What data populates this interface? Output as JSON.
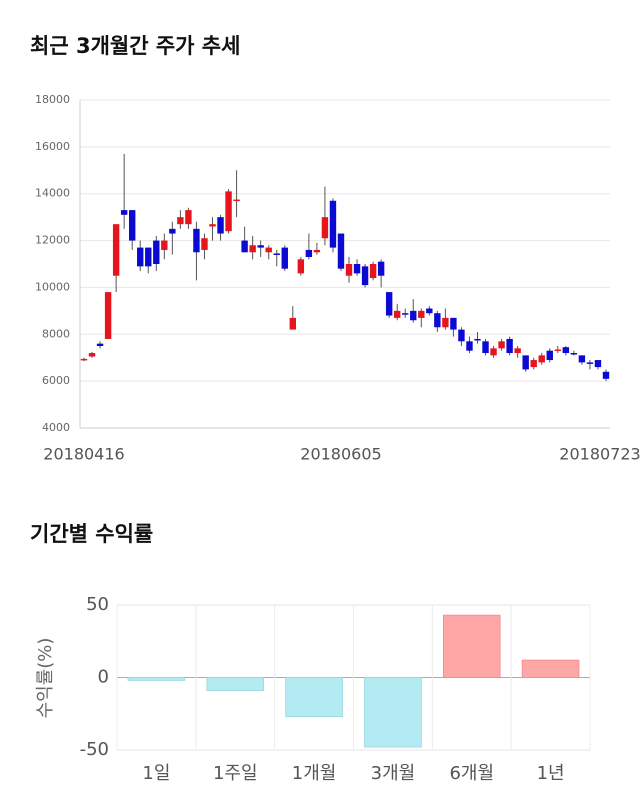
{
  "chart_data": [
    {
      "type": "candlestick",
      "title": "최근 3개월간 주가 추세",
      "categories": [
        "20180416",
        null,
        null,
        null,
        null,
        null,
        null,
        null,
        null,
        null,
        null,
        null,
        null,
        null,
        null,
        null,
        null,
        null,
        null,
        null,
        null,
        null,
        null,
        null,
        null,
        null,
        null,
        null,
        null,
        null,
        null,
        null,
        "20180605",
        null,
        null,
        null,
        null,
        null,
        null,
        null,
        null,
        null,
        null,
        null,
        null,
        null,
        null,
        null,
        null,
        null,
        null,
        null,
        null,
        null,
        null,
        null,
        null,
        null,
        null,
        null,
        null,
        null,
        null,
        null,
        null,
        "20180723"
      ],
      "open": [
        6900,
        7050,
        7600,
        7800,
        10500,
        13300,
        13300,
        11700,
        11700,
        12000,
        11600,
        12500,
        12700,
        12700,
        12500,
        11600,
        12600,
        13000,
        12400,
        13700,
        12000,
        11500,
        11800,
        11500,
        11450,
        11700,
        8200,
        10600,
        11600,
        11500,
        12100,
        13700,
        12300,
        10500,
        11000,
        10900,
        10400,
        11100,
        9800,
        8700,
        8900,
        9000,
        8700,
        9100,
        8900,
        8300,
        8700,
        8200,
        7700,
        7800,
        7700,
        7100,
        7400,
        7800,
        7200,
        7100,
        6600,
        6800,
        7300,
        7300,
        7450,
        7200,
        7100,
        6800,
        6900,
        6400
      ],
      "high": [
        7000,
        7250,
        7700,
        9800,
        12700,
        15700,
        13300,
        12000,
        11700,
        12200,
        12300,
        12800,
        13300,
        13400,
        12800,
        12300,
        13000,
        13100,
        14200,
        15000,
        12600,
        12200,
        12000,
        11800,
        11600,
        11800,
        9200,
        11300,
        12300,
        11900,
        14300,
        13800,
        12300,
        11300,
        11200,
        11000,
        11100,
        11200,
        9800,
        9300,
        9100,
        9500,
        9100,
        9200,
        9000,
        9100,
        8700,
        8300,
        7900,
        8100,
        7800,
        7500,
        7800,
        7900,
        7500,
        7100,
        7000,
        7200,
        7400,
        7500,
        7500,
        7300,
        7100,
        6900,
        6900,
        6500
      ],
      "low": [
        6850,
        7000,
        7400,
        7800,
        9800,
        12500,
        11600,
        10700,
        10600,
        10700,
        11200,
        11400,
        12500,
        12500,
        10300,
        11200,
        12000,
        12000,
        12300,
        13000,
        11500,
        11200,
        11300,
        11200,
        10900,
        10700,
        8200,
        10500,
        11200,
        11400,
        11800,
        11500,
        10700,
        10200,
        10500,
        10000,
        10300,
        10000,
        8700,
        8600,
        8700,
        8500,
        8300,
        8800,
        8100,
        8200,
        7900,
        7500,
        7200,
        7600,
        7100,
        7000,
        7300,
        7100,
        7000,
        6400,
        6500,
        6700,
        6800,
        7200,
        7100,
        7100,
        6700,
        6500,
        6500,
        6000
      ],
      "close": [
        6950,
        7200,
        7500,
        9800,
        12700,
        13100,
        12000,
        10900,
        10900,
        11000,
        12000,
        12300,
        13000,
        13300,
        11500,
        12100,
        12700,
        12300,
        14100,
        13750,
        11500,
        11800,
        11700,
        11700,
        11400,
        10800,
        8700,
        11200,
        11300,
        11600,
        13000,
        11700,
        10800,
        11000,
        10600,
        10100,
        11000,
        10500,
        8800,
        9000,
        8850,
        8600,
        9000,
        8900,
        8300,
        8700,
        8200,
        7700,
        7300,
        7750,
        7200,
        7400,
        7700,
        7200,
        7400,
        6500,
        6900,
        7100,
        6900,
        7350,
        7200,
        7150,
        6800,
        6750,
        6600,
        6100
      ],
      "up_color": "#e8141c",
      "down_color": "#0a0ad2",
      "ylim": [
        4000,
        18000
      ],
      "yticks": [
        4000,
        6000,
        8000,
        10000,
        12000,
        14000,
        16000,
        18000
      ],
      "grid": true
    },
    {
      "type": "bar",
      "title": "기간별 수익률",
      "ylabel": "수익률(%)",
      "categories": [
        "1일",
        "1주일",
        "1개월",
        "3개월",
        "6개월",
        "1년"
      ],
      "values": [
        -2,
        -9,
        -27,
        -48,
        43,
        12
      ],
      "colors": [
        "#b3ebf3",
        "#b3ebf3",
        "#b3ebf3",
        "#b3ebf3",
        "#ffa6a6",
        "#ffa6a6"
      ],
      "ylim": [
        -50,
        50
      ],
      "yticks": [
        -50,
        0,
        50
      ],
      "grid": true
    }
  ]
}
